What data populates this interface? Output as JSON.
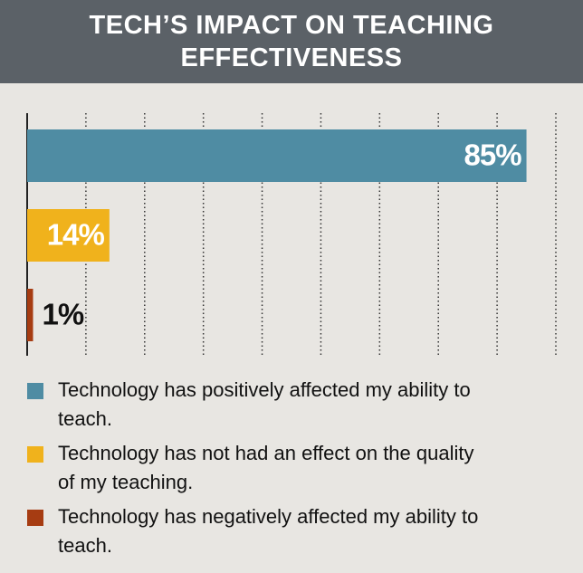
{
  "chart_data": {
    "type": "hbar",
    "title": "TECH’S IMPACT ON TEACHING EFFECTIVENESS",
    "categories": [
      "Technology has positively affected my ability to teach.",
      "Technology has not had an effect on the quality of my teaching.",
      "Technology has negatively affected my ability to teach."
    ],
    "values": [
      85,
      14,
      1
    ],
    "value_labels": [
      "85%",
      "14%",
      "1%"
    ],
    "colors": [
      "#4f8ca3",
      "#f0b21c",
      "#a63c12"
    ],
    "xlim": [
      0,
      90
    ],
    "xticks": [
      0,
      10,
      20,
      30,
      40,
      50,
      60,
      70,
      80,
      90
    ],
    "grid": true
  }
}
